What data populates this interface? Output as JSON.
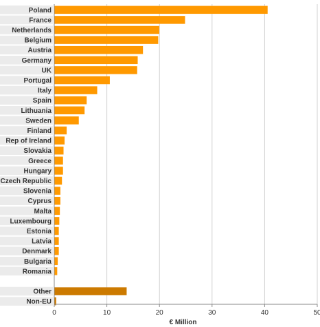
{
  "chart_data": {
    "type": "bar",
    "orientation": "horizontal",
    "xlabel": "€ Million",
    "xlim": [
      0,
      50
    ],
    "xticks": [
      0,
      10,
      20,
      30,
      40,
      50
    ],
    "grid": true,
    "series": [
      {
        "categories": [
          "Poland",
          "France",
          "Netherlands",
          "Belgium",
          "Austria",
          "Germany",
          "UK",
          "Portugal",
          "Italy",
          "Spain",
          "Lithuania",
          "Sweden",
          "Finland",
          "Rep of Ireland",
          "Slovakia",
          "Greece",
          "Hungary",
          "Czech Republic",
          "Slovenia",
          "Cyprus",
          "Malta",
          "Luxembourg",
          "Estonia",
          "Latvia",
          "Denmark",
          "Bulgaria",
          "Romania"
        ],
        "values": [
          40.5,
          24.8,
          19.9,
          19.7,
          16.8,
          15.8,
          15.7,
          10.5,
          8.1,
          6.1,
          5.7,
          4.6,
          2.3,
          1.9,
          1.7,
          1.6,
          1.6,
          1.4,
          1.1,
          1.1,
          1.0,
          0.9,
          0.8,
          0.8,
          0.8,
          0.6,
          0.5
        ],
        "color": "#ff9900"
      },
      {
        "categories": [
          "Other",
          "Non-EU"
        ],
        "values": [
          13.7,
          0.3
        ],
        "color": "#cc7a00"
      }
    ],
    "stripe_color": "#ebebeb"
  }
}
